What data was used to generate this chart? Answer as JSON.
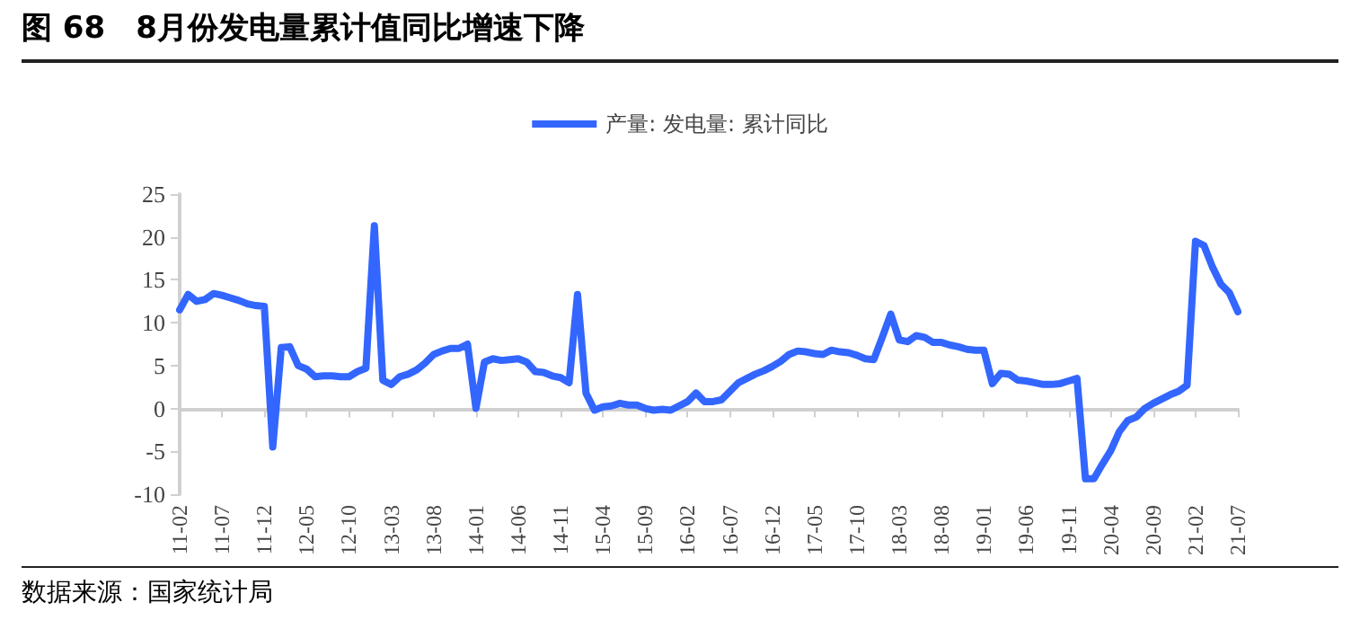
{
  "chart_data": {
    "type": "line",
    "title": "图 68　8月份发电量累计值同比增速下降",
    "annotations": [
      "数据来源：国家统计局"
    ],
    "categories": [
      "11-02",
      null,
      null,
      null,
      null,
      "11-07",
      null,
      null,
      null,
      null,
      "11-12",
      null,
      null,
      null,
      null,
      "12-05",
      null,
      null,
      null,
      null,
      "12-10",
      null,
      null,
      null,
      null,
      "13-03",
      null,
      null,
      null,
      null,
      "13-08",
      null,
      null,
      null,
      null,
      "14-01",
      null,
      null,
      null,
      null,
      "14-06",
      null,
      null,
      null,
      null,
      "14-11",
      null,
      null,
      null,
      null,
      "15-04",
      null,
      null,
      null,
      null,
      "15-09",
      null,
      null,
      null,
      null,
      "16-02",
      null,
      null,
      null,
      null,
      "16-07",
      null,
      null,
      null,
      null,
      "16-12",
      null,
      null,
      null,
      null,
      "17-05",
      null,
      null,
      null,
      null,
      "17-10",
      null,
      null,
      null,
      null,
      "18-03",
      null,
      null,
      null,
      null,
      "18-08",
      null,
      null,
      null,
      null,
      "19-01",
      null,
      null,
      null,
      null,
      "19-06",
      null,
      null,
      null,
      null,
      "19-11",
      null,
      null,
      null,
      null,
      "20-04",
      null,
      null,
      null,
      null,
      "20-09",
      null,
      null,
      null,
      null,
      "21-02",
      null,
      null,
      null,
      null,
      "21-07"
    ],
    "series": [
      {
        "name": "产量: 发电量: 累计同比",
        "color": "#3366ff",
        "values": [
          11.5,
          13.3,
          12.5,
          12.7,
          13.4,
          13.2,
          12.9,
          12.6,
          12.2,
          12.0,
          11.9,
          -4.5,
          7.1,
          7.2,
          5.0,
          4.6,
          3.7,
          3.8,
          3.8,
          3.7,
          3.7,
          4.3,
          4.7,
          21.3,
          3.3,
          2.8,
          3.7,
          4.0,
          4.5,
          5.3,
          6.3,
          6.7,
          7.0,
          7.0,
          7.5,
          0.0,
          5.4,
          5.8,
          5.6,
          5.7,
          5.8,
          5.4,
          4.3,
          4.2,
          3.8,
          3.6,
          3.0,
          13.3,
          1.8,
          -0.2,
          0.2,
          0.3,
          0.6,
          0.4,
          0.4,
          0.0,
          -0.2,
          -0.1,
          -0.2,
          0.3,
          0.8,
          1.8,
          0.8,
          0.8,
          1.0,
          2.0,
          3.0,
          3.5,
          4.0,
          4.4,
          4.9,
          5.5,
          6.3,
          6.7,
          6.6,
          6.4,
          6.3,
          6.8,
          6.6,
          6.5,
          6.2,
          5.8,
          5.7,
          8.3,
          11.0,
          8.0,
          7.8,
          8.5,
          8.3,
          7.7,
          7.7,
          7.4,
          7.2,
          6.9,
          6.8,
          6.8,
          2.9,
          4.1,
          4.0,
          3.3,
          3.2,
          3.0,
          2.8,
          2.8,
          2.9,
          3.2,
          3.5,
          -8.2,
          -8.2,
          -6.5,
          -4.9,
          -2.7,
          -1.4,
          -1.0,
          0.0,
          0.6,
          1.1,
          1.6,
          2.0,
          2.7,
          19.5,
          19.0,
          16.5,
          14.5,
          13.5,
          11.3
        ]
      }
    ],
    "ylim": [
      -10,
      25
    ],
    "yticks": [
      -10,
      -5,
      0,
      5,
      10,
      15,
      20,
      25
    ],
    "legend": "top",
    "marker": "none",
    "line_style": "solid"
  }
}
